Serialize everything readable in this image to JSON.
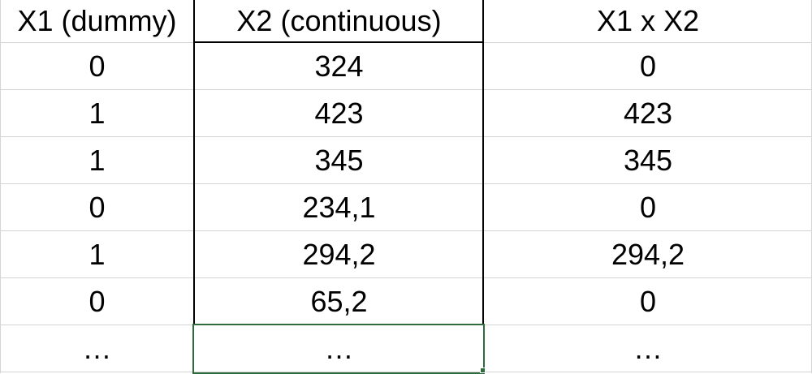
{
  "table": {
    "headers": [
      "X1 (dummy)",
      "X2 (continuous)",
      "X1 x X2"
    ],
    "rows": [
      [
        "0",
        "324",
        "0"
      ],
      [
        "1",
        "423",
        "423"
      ],
      [
        "1",
        "345",
        "345"
      ],
      [
        "0",
        "234,1",
        "0"
      ],
      [
        "1",
        "294,2",
        "294,2"
      ],
      [
        "0",
        "65,2",
        "0"
      ],
      [
        "…",
        "…",
        "…"
      ]
    ]
  },
  "selection": {
    "row": 7,
    "column": 2,
    "accent_color": "#2f6b3f"
  },
  "colors": {
    "gridline": "#d4d4d4",
    "border": "#000000",
    "selection": "#2f6b3f"
  }
}
